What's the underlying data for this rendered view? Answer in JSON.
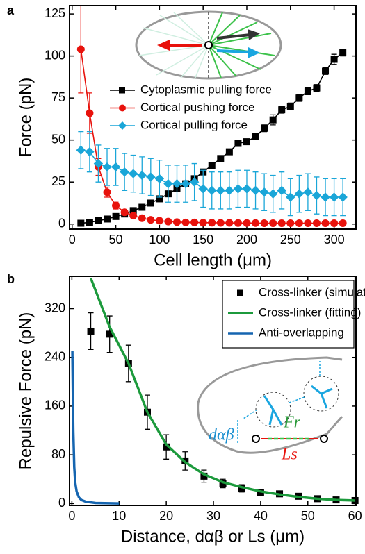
{
  "chart_data": [
    {
      "type": "line",
      "panel": "a",
      "x_label": "Cell length (μm)",
      "y_label": "Force (pN)",
      "xlim": [
        -3,
        325
      ],
      "ylim": [
        -3,
        130
      ],
      "xticks": [
        0,
        50,
        100,
        150,
        200,
        250,
        300
      ],
      "yticks": [
        0,
        25,
        50,
        75,
        100,
        125
      ],
      "legend": "center",
      "x": [
        10,
        20,
        30,
        40,
        50,
        60,
        70,
        80,
        90,
        100,
        110,
        120,
        130,
        140,
        150,
        160,
        170,
        180,
        190,
        200,
        210,
        220,
        230,
        240,
        250,
        260,
        270,
        280,
        290,
        300,
        310
      ],
      "series": [
        {
          "name": "Cytoplasmic pulling force",
          "color": "#000000",
          "marker": "square",
          "mode": "lines+markers",
          "values": [
            0.5,
            1,
            2,
            3,
            4.5,
            6,
            8,
            10,
            12.5,
            15,
            18,
            21,
            24,
            27,
            31,
            35,
            39,
            43,
            48,
            49,
            52,
            57,
            62,
            68,
            70,
            75,
            79,
            81,
            91,
            98,
            102
          ],
          "errors": [
            0.3,
            0.3,
            0.4,
            0.5,
            0.5,
            0.6,
            0.7,
            0.8,
            0.8,
            1,
            1,
            1,
            1,
            1,
            1,
            1,
            1,
            1,
            1.5,
            1.5,
            1.5,
            2,
            3,
            2,
            2,
            2,
            2,
            2,
            2,
            3,
            2
          ]
        },
        {
          "name": "Cortical pushing force",
          "color": "#e8120c",
          "marker": "circle",
          "mode": "lines+markers",
          "values": [
            104,
            66,
            34,
            19,
            11,
            7,
            5,
            3.5,
            2.5,
            2,
            1.5,
            1.2,
            1,
            1,
            0.8,
            0.8,
            0.7,
            0.7,
            0.6,
            0.6,
            0.6,
            0.5,
            0.5,
            0.5,
            0.5,
            0.5,
            0.5,
            0.5,
            0.5,
            0.5,
            0.5
          ],
          "errors": [
            26,
            12,
            5,
            3,
            2,
            1,
            0.8,
            0.5,
            0.4,
            0.3,
            0.3,
            0.3,
            0.2,
            0.2,
            0.2,
            0.2,
            0.2,
            0.2,
            0.2,
            0.2,
            0.2,
            0.2,
            0.2,
            0.2,
            0.2,
            0.2,
            0.2,
            0.2,
            0.2,
            0.2,
            0.2
          ]
        },
        {
          "name": "Cortical pulling force",
          "color": "#1aa6d8",
          "marker": "diamond",
          "mode": "lines+markers",
          "values": [
            44,
            43,
            36,
            34,
            34,
            31,
            30,
            29,
            28,
            27,
            24,
            24,
            24,
            25,
            21,
            20,
            20,
            20,
            21,
            21,
            20,
            19,
            18,
            20,
            16,
            18,
            19,
            17,
            16,
            16,
            16
          ],
          "errors": [
            11,
            12,
            11,
            11,
            11,
            11,
            11,
            11,
            11,
            11,
            11,
            11,
            11,
            11,
            11,
            11,
            11,
            11,
            11,
            11,
            11,
            11,
            11,
            11,
            11,
            11,
            11,
            11,
            11,
            11,
            11
          ]
        }
      ]
    },
    {
      "type": "line",
      "panel": "b",
      "x_label": "Distance, dαβ or Ls (μm)",
      "y_label": "Repulsive Force (pN)",
      "xlim": [
        -0.5,
        60.2
      ],
      "ylim": [
        -3,
        373
      ],
      "xticks": [
        0,
        10,
        20,
        30,
        40,
        50,
        60
      ],
      "yticks": [
        0,
        80,
        160,
        240,
        320
      ],
      "legend": "upper right",
      "annotations": [
        "dαβ",
        "Fr",
        "Ls"
      ],
      "series": [
        {
          "name": "Cross-linker (simulation)",
          "color": "#000000",
          "marker": "square",
          "mode": "markers",
          "x": [
            4,
            8,
            12,
            16,
            20,
            24,
            28,
            32,
            36,
            40,
            44,
            48,
            52,
            56,
            60
          ],
          "values": [
            283,
            278,
            230,
            150,
            93,
            70,
            45,
            33,
            25,
            18,
            16,
            12,
            8,
            6,
            5
          ],
          "errors": [
            30,
            30,
            30,
            28,
            20,
            15,
            10,
            7,
            6,
            5,
            4,
            4,
            3,
            3,
            2
          ]
        },
        {
          "name": "Cross-linker (fitting)",
          "color": "#1c9a3c",
          "marker": "none",
          "mode": "lines",
          "x": [
            4,
            6,
            8,
            10,
            12,
            16,
            20,
            24,
            28,
            32,
            36,
            40,
            44,
            48,
            52,
            56,
            60
          ],
          "values": [
            370,
            330,
            290,
            260,
            230,
            150,
            97,
            68,
            48,
            35,
            27,
            20,
            15,
            11,
            8,
            6,
            5
          ]
        },
        {
          "name": "Anti-overlapping",
          "color": "#1565b0",
          "marker": "none",
          "mode": "lines",
          "x": [
            0.1,
            0.2,
            0.3,
            0.5,
            0.7,
            1,
            1.5,
            2,
            3,
            5,
            10
          ],
          "values": [
            250,
            180,
            120,
            60,
            35,
            20,
            10,
            6,
            3,
            1,
            0.3
          ]
        }
      ]
    }
  ]
}
